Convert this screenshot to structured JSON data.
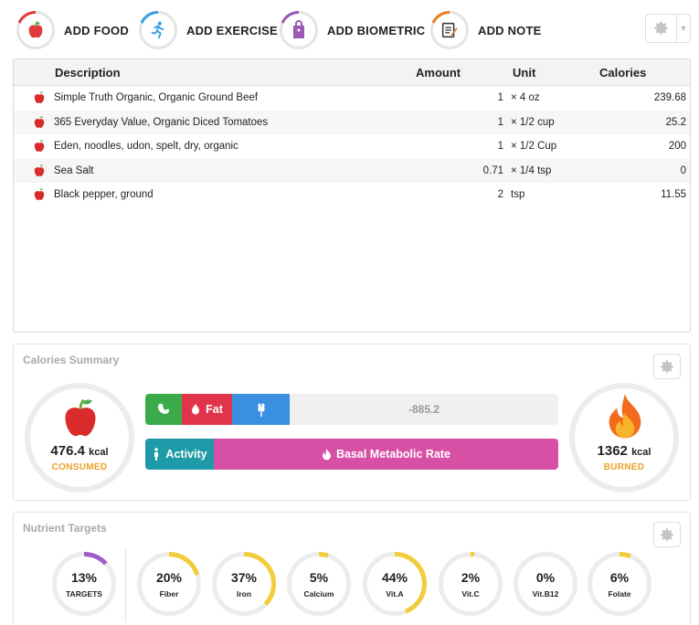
{
  "toolbar": {
    "buttons": [
      {
        "label": "ADD FOOD",
        "icon": "apple-icon",
        "color": "#e23a3a"
      },
      {
        "label": "ADD EXERCISE",
        "icon": "runner-icon",
        "color": "#3a9ee2"
      },
      {
        "label": "ADD BIOMETRIC",
        "icon": "tag-icon",
        "color": "#9b59b6"
      },
      {
        "label": "ADD NOTE",
        "icon": "notepad-icon",
        "color": "#e67e22"
      }
    ]
  },
  "food_table": {
    "headers": {
      "description": "Description",
      "amount": "Amount",
      "unit": "Unit",
      "calories": "Calories"
    },
    "rows": [
      {
        "description": "Simple Truth Organic, Organic Ground Beef",
        "amount": "1",
        "unit": "× 4 oz",
        "calories": "239.68"
      },
      {
        "description": "365 Everyday Value, Organic Diced Tomatoes",
        "amount": "1",
        "unit": "× 1/2 cup",
        "calories": "25.2"
      },
      {
        "description": "Eden, noodles, udon, spelt, dry, organic",
        "amount": "1",
        "unit": "× 1/2 Cup",
        "calories": "200"
      },
      {
        "description": "Sea Salt",
        "amount": "0.71",
        "unit": "× 1/4 tsp",
        "calories": "0"
      },
      {
        "description": "Black pepper, ground",
        "amount": "2",
        "unit": "tsp",
        "calories": "11.55"
      }
    ]
  },
  "calories_summary": {
    "title": "Calories Summary",
    "consumed": {
      "value": "476.4",
      "unit": "kcal",
      "caption": "CONSUMED"
    },
    "burned": {
      "value": "1362",
      "unit": "kcal",
      "caption": "BURNED"
    },
    "consumed_bar": {
      "fat_label": "Fat",
      "balance": "-885.2"
    },
    "burned_bar": {
      "activity_label": "Activity",
      "bmr_label": "Basal Metabolic Rate"
    },
    "colors": {
      "protein": "#3bab4a",
      "fat": "#e0344a",
      "carbs": "#3a8fe0",
      "activity": "#1f9aa8",
      "bmr": "#d84fa6"
    }
  },
  "nutrient_targets": {
    "title": "Nutrient Targets",
    "items": [
      {
        "pct": "13%",
        "label": "TARGETS",
        "fraction": 0.13,
        "color": "#a05cc6"
      },
      {
        "pct": "20%",
        "label": "Fiber",
        "fraction": 0.2,
        "color": "#f2cd3a"
      },
      {
        "pct": "37%",
        "label": "Iron",
        "fraction": 0.37,
        "color": "#f2cd3a"
      },
      {
        "pct": "5%",
        "label": "Calcium",
        "fraction": 0.05,
        "color": "#f2cd3a"
      },
      {
        "pct": "44%",
        "label": "Vit.A",
        "fraction": 0.44,
        "color": "#f2cd3a"
      },
      {
        "pct": "2%",
        "label": "Vit.C",
        "fraction": 0.02,
        "color": "#f2cd3a"
      },
      {
        "pct": "0%",
        "label": "Vit.B12",
        "fraction": 0.0,
        "color": "#f2cd3a"
      },
      {
        "pct": "6%",
        "label": "Folate",
        "fraction": 0.06,
        "color": "#f2cd3a"
      }
    ]
  }
}
